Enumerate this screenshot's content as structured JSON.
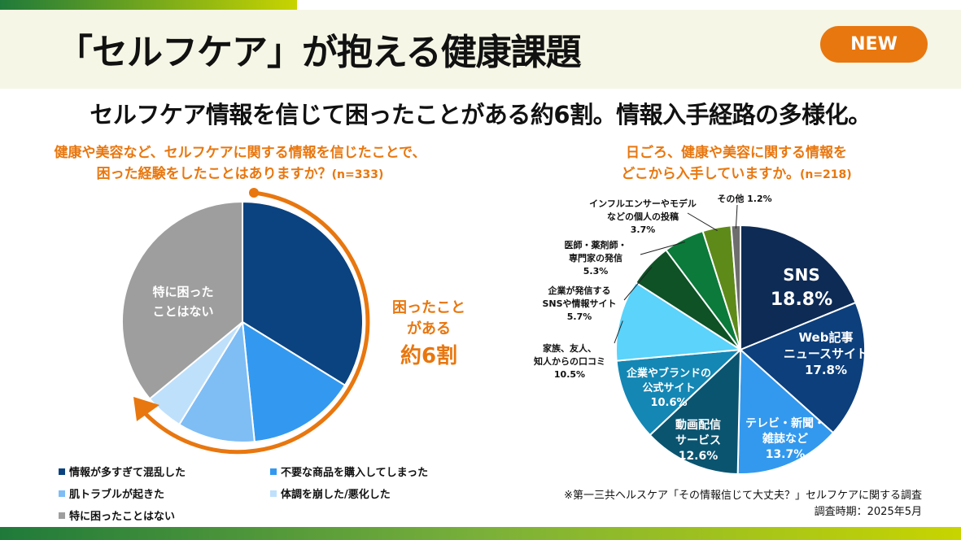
{
  "header": {
    "title": "「セルフケア」が抱える健康課題",
    "badge": "NEW"
  },
  "subtitle": "セルフケア情報を信じて困ったことがある約6割。情報入手経路の多様化。",
  "chart_data": [
    {
      "type": "pie",
      "title": "健康や美容など、セルフケアに関する情報を信じたことで、困った経験をしたことはありますか？",
      "n": "(n=333)",
      "title_line1": "健康や美容など、セルフケアに関する情報を信じたことで、",
      "title_line2": "困った経験をしたことはありますか？",
      "slices": [
        {
          "label": "情報が多すぎて混乱した",
          "value": 33.8,
          "color": "#0b4380"
        },
        {
          "label": "不要な商品を購入してしまった",
          "value": 14.6,
          "color": "#3399f0"
        },
        {
          "label": "肌トラブルが起きた",
          "value": 10.4,
          "color": "#7fbdf5"
        },
        {
          "label": "体調を崩した/悪化した",
          "value": 5.2,
          "color": "#bfe0fb"
        },
        {
          "label": "特に困ったことはない",
          "value": 36.0,
          "color": "#9e9e9e"
        }
      ],
      "inner_label_line1": "特に困った",
      "inner_label_line2": "ことはない",
      "annotation": {
        "line1": "困ったこと",
        "line2": "がある",
        "line3": "約6割"
      },
      "legend_placement": "bottom"
    },
    {
      "type": "pie",
      "title": "日ごろ、健康や美容に関する情報をどこから入手していますか。",
      "n": "(n=218)",
      "title_line1": "日ごろ、健康や美容に関する情報を",
      "title_line2": "どこから入手していますか。",
      "slices": [
        {
          "label": "SNS",
          "value": 18.8,
          "pct": "18.8%",
          "color": "#0d2b55"
        },
        {
          "label": "Web記事ニュースサイト",
          "value": 17.8,
          "pct": "17.8%",
          "color": "#0c3f7b"
        },
        {
          "label": "テレビ・新聞・雑誌など",
          "value": 13.7,
          "pct": "13.7%",
          "color": "#3399ee"
        },
        {
          "label": "動画配信サービス",
          "value": 12.6,
          "pct": "12.6%",
          "color": "#0b5470"
        },
        {
          "label": "企業やブランドの公式サイト",
          "value": 10.6,
          "pct": "10.6%",
          "color": "#1487b4"
        },
        {
          "label": "家族、友人、知人からの口コミ",
          "value": 10.5,
          "pct": "10.5%",
          "color": "#5bd3fa"
        },
        {
          "label": "企業が発信するSNSや情報サイト",
          "value": 5.7,
          "pct": "5.7%",
          "color": "#0e5226"
        },
        {
          "label": "医師・薬剤師・専門家の発信",
          "value": 5.3,
          "pct": "5.3%",
          "color": "#0b7a3a"
        },
        {
          "label": "インフルエンサーやモデルなどの個人の投稿",
          "value": 3.7,
          "pct": "3.7%",
          "color": "#5e8a1a"
        },
        {
          "label": "その他",
          "value": 1.2,
          "pct": "1.2%",
          "color": "#6e6e6e"
        }
      ],
      "label_lines": [
        [
          "SNS"
        ],
        [
          "Web記事",
          "ニュースサイト"
        ],
        [
          "テレビ・新聞・",
          "雑誌など"
        ],
        [
          "動画配信",
          "サービス"
        ],
        [
          "企業やブランドの",
          "公式サイト"
        ],
        [
          "家族、友人、",
          "知人からの口コミ"
        ],
        [
          "企業が発信する",
          "SNSや情報サイト"
        ],
        [
          "医師・薬剤師・",
          "専門家の発信"
        ],
        [
          "インフルエンサーやモデル",
          "などの個人の投稿"
        ],
        [
          "その他"
        ]
      ]
    }
  ],
  "note": {
    "line1": "※第一三共ヘルスケア「その情報信じて大丈夫？」セルフケアに関する調査",
    "line2": "調査時期：2025年5月"
  }
}
